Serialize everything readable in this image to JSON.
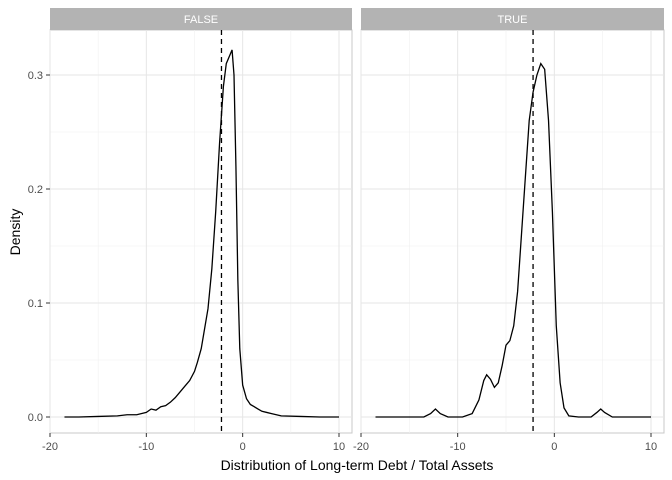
{
  "chart_data": {
    "type": "line",
    "title": "",
    "xlabel": "Distribution of Long-term Debt / Total Assets",
    "ylabel": "Density",
    "xlim": [
      -20,
      10
    ],
    "ylim": [
      0,
      0.33
    ],
    "x_ticks": [
      -20,
      -10,
      0,
      10
    ],
    "x_tick_labels": [
      "-20",
      "-10",
      "0",
      "10"
    ],
    "y_ticks": [
      0.0,
      0.1,
      0.2,
      0.3
    ],
    "y_tick_labels": [
      "0.0",
      "0.1",
      "0.2",
      "0.3"
    ],
    "grid": true,
    "reference_line_style": "dashed",
    "panels": [
      {
        "label": "FALSE",
        "vline_x": -2.2,
        "curve": [
          [
            -18.5,
            0.0
          ],
          [
            -17,
            0.0
          ],
          [
            -15,
            0.0005
          ],
          [
            -13,
            0.001
          ],
          [
            -12,
            0.002
          ],
          [
            -11,
            0.002
          ],
          [
            -10,
            0.004
          ],
          [
            -9.5,
            0.007
          ],
          [
            -9,
            0.006
          ],
          [
            -8.5,
            0.009
          ],
          [
            -8,
            0.01
          ],
          [
            -7.5,
            0.013
          ],
          [
            -7,
            0.017
          ],
          [
            -6.5,
            0.022
          ],
          [
            -6,
            0.027
          ],
          [
            -5.5,
            0.032
          ],
          [
            -5,
            0.04
          ],
          [
            -4.7,
            0.048
          ],
          [
            -4.3,
            0.06
          ],
          [
            -4,
            0.075
          ],
          [
            -3.6,
            0.095
          ],
          [
            -3.2,
            0.13
          ],
          [
            -2.8,
            0.18
          ],
          [
            -2.4,
            0.24
          ],
          [
            -2.0,
            0.29
          ],
          [
            -1.7,
            0.31
          ],
          [
            -1.4,
            0.316
          ],
          [
            -1.1,
            0.322
          ],
          [
            -0.9,
            0.3
          ],
          [
            -0.7,
            0.22
          ],
          [
            -0.5,
            0.12
          ],
          [
            -0.3,
            0.06
          ],
          [
            0,
            0.028
          ],
          [
            0.4,
            0.016
          ],
          [
            0.8,
            0.011
          ],
          [
            1.2,
            0.009
          ],
          [
            1.6,
            0.007
          ],
          [
            2.0,
            0.005
          ],
          [
            2.5,
            0.004
          ],
          [
            3.0,
            0.003
          ],
          [
            4,
            0.001
          ],
          [
            6,
            0.0005
          ],
          [
            8,
            0.0
          ],
          [
            10,
            0.0
          ]
        ]
      },
      {
        "label": "TRUE",
        "vline_x": -2.2,
        "curve": [
          [
            -18.5,
            0.0
          ],
          [
            -15,
            0.0
          ],
          [
            -13.5,
            0.0
          ],
          [
            -12.8,
            0.003
          ],
          [
            -12.3,
            0.007
          ],
          [
            -11.8,
            0.003
          ],
          [
            -11,
            0.0
          ],
          [
            -9.5,
            0.0
          ],
          [
            -8.5,
            0.003
          ],
          [
            -7.8,
            0.015
          ],
          [
            -7.3,
            0.032
          ],
          [
            -7.0,
            0.037
          ],
          [
            -6.6,
            0.033
          ],
          [
            -6.2,
            0.026
          ],
          [
            -5.8,
            0.03
          ],
          [
            -5.4,
            0.045
          ],
          [
            -5.0,
            0.063
          ],
          [
            -4.6,
            0.067
          ],
          [
            -4.2,
            0.08
          ],
          [
            -3.8,
            0.11
          ],
          [
            -3.4,
            0.16
          ],
          [
            -3.0,
            0.21
          ],
          [
            -2.6,
            0.26
          ],
          [
            -2.2,
            0.285
          ],
          [
            -1.8,
            0.3
          ],
          [
            -1.4,
            0.31
          ],
          [
            -1.0,
            0.305
          ],
          [
            -0.6,
            0.26
          ],
          [
            -0.2,
            0.18
          ],
          [
            0.2,
            0.08
          ],
          [
            0.6,
            0.03
          ],
          [
            1.0,
            0.008
          ],
          [
            1.5,
            0.001
          ],
          [
            2.5,
            0.0
          ],
          [
            3.8,
            0.0
          ],
          [
            4.4,
            0.004
          ],
          [
            4.8,
            0.007
          ],
          [
            5.2,
            0.004
          ],
          [
            6,
            0.0
          ],
          [
            8,
            0.0
          ],
          [
            10,
            0.0
          ]
        ]
      }
    ]
  }
}
